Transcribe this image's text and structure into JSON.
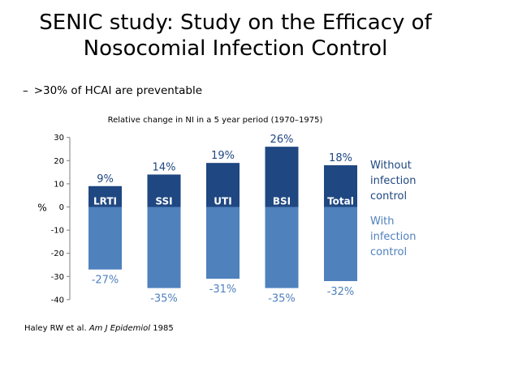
{
  "slide": {
    "title_line1": "SENIC study: Study on the Efficacy of",
    "title_line2": "Nosocomial Infection Control",
    "bullet_dash": "–",
    "bullet_text": ">30% of HCAI are preventable",
    "citation_prefix": "Haley RW et al. ",
    "citation_journal": "Am J Epidemiol",
    "citation_suffix": " 1985"
  },
  "chart_data": {
    "type": "bar",
    "title": "Relative change in NI in a 5 year period (1970–1975)",
    "ylabel": "%",
    "categories": [
      "LRTI",
      "SSI",
      "UTI",
      "BSI",
      "Total"
    ],
    "series": [
      {
        "name": "Without infection control",
        "name_lines": [
          "Without",
          "infection",
          "control"
        ],
        "values": [
          9,
          14,
          19,
          26,
          18
        ],
        "labels": [
          "9%",
          "14%",
          "19%",
          "26%",
          "18%"
        ],
        "color": "#1f4781"
      },
      {
        "name": "With infection control",
        "name_lines": [
          "With",
          "infection",
          "control"
        ],
        "values": [
          -27,
          -35,
          -31,
          -35,
          -32
        ],
        "labels": [
          "-27%",
          "-35%",
          "-31%",
          "-35%",
          "-32%"
        ],
        "color": "#4f81bd"
      }
    ],
    "ylim": [
      -40,
      30
    ],
    "yticks": [
      30,
      20,
      10,
      0,
      -10,
      -20,
      -30,
      -40
    ],
    "grid": false,
    "legend": "right"
  }
}
